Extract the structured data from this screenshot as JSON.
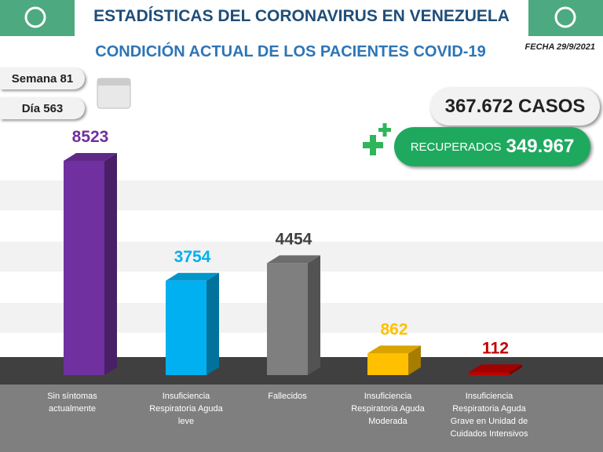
{
  "header": {
    "title": "ESTADÍSTICAS DEL CORONAVIRUS EN VENEZUELA",
    "subtitle": "CONDICIÓN ACTUAL DE LOS PACIENTES COVID-19",
    "date": "FECHA 29/9/2021",
    "week": "Semana 81",
    "day": "Día 563"
  },
  "summary": {
    "cases": "367.672 CASOS",
    "recovered_label": "RECUPERADOS",
    "recovered_value": "349.967"
  },
  "chart_data": {
    "type": "bar3d",
    "categories": [
      "Sin síntomas actualmente",
      "Insuficiencia Respiratoria Aguda leve",
      "Fallecidos",
      "Insuficiencia Respiratoria Aguda Moderada",
      "Insuficiencia Respiratoria Aguda Grave en Unidad de Cuidados Intensivos"
    ],
    "values": [
      8523,
      3754,
      4454,
      862,
      112
    ],
    "colors": [
      "#7030a0",
      "#00b0f0",
      "#7f7f7f",
      "#ffc000",
      "#c00000"
    ],
    "label_colors": [
      "#7030a0",
      "#00b0f0",
      "#404040",
      "#ffc000",
      "#c00000"
    ]
  }
}
